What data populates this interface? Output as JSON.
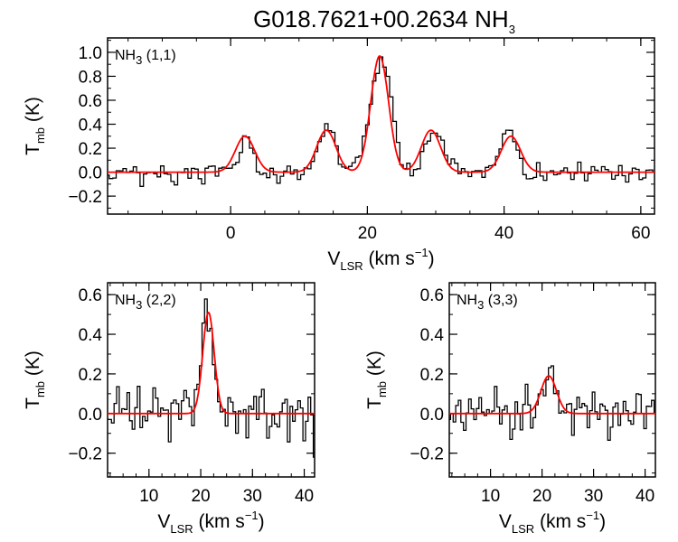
{
  "figure": {
    "title": "G018.7621+00.2634 NH",
    "title_sub": "3"
  },
  "chart_data": [
    {
      "type": "line",
      "panel_label": {
        "main": "NH",
        "sub": "3",
        "tail": " (1,1)"
      },
      "xlabel": {
        "main": "V",
        "sub": "LSR",
        "tail": " (km s",
        "sup": "−1",
        "end": ")"
      },
      "ylabel": {
        "main": "T",
        "sub": "mb",
        "tail": " (K)"
      },
      "xlim": [
        -18,
        62
      ],
      "ylim": [
        -0.35,
        1.12
      ],
      "xticks": [
        0,
        20,
        40,
        60
      ],
      "xtick_labels": [
        "0",
        "20",
        "40",
        "60"
      ],
      "yticks": [
        -0.2,
        0.0,
        0.2,
        0.4,
        0.6,
        0.8,
        1.0
      ],
      "ytick_labels": [
        "−0.2",
        "0.0",
        "0.2",
        "0.4",
        "0.6",
        "0.8",
        "1.0"
      ],
      "grid": false,
      "series": [
        {
          "style": "histogram",
          "color": "#000000",
          "noise_rms": 0.045,
          "x": [
            -18,
            -17,
            -16,
            -15,
            -14,
            -13,
            -12,
            -11,
            -10,
            -9,
            -8,
            -7,
            -6,
            -5,
            -4,
            -3,
            -2,
            -1,
            0,
            1,
            2,
            3,
            4,
            5,
            6,
            7,
            8,
            9,
            10,
            11,
            12,
            13,
            14,
            15,
            16,
            17,
            18,
            19,
            20,
            21,
            22,
            23,
            24,
            25,
            26,
            27,
            28,
            29,
            30,
            31,
            32,
            33,
            34,
            35,
            36,
            37,
            38,
            39,
            40,
            41,
            42,
            43,
            44,
            45,
            46,
            47,
            48,
            49,
            50,
            51,
            52,
            53,
            54,
            55,
            56,
            57,
            58,
            59,
            60,
            61,
            62
          ],
          "y": [
            0.02,
            -0.08,
            0.05,
            -0.03,
            0.04,
            -0.12,
            0.03,
            -0.05,
            0.06,
            -0.02,
            -0.07,
            0.04,
            -0.04,
            0.02,
            -0.06,
            0.05,
            -0.03,
            0.04,
            0.01,
            0.05,
            0.33,
            0.22,
            0.04,
            -0.03,
            0.02,
            -0.05,
            0.05,
            0.02,
            -0.04,
            0.04,
            0.1,
            0.23,
            0.38,
            0.33,
            0.1,
            0.03,
            0.06,
            0.18,
            0.35,
            0.72,
            1.0,
            0.82,
            0.4,
            0.06,
            0.03,
            -0.02,
            0.13,
            0.3,
            0.37,
            0.26,
            0.1,
            0.04,
            0.02,
            -0.05,
            0.05,
            -0.02,
            0.06,
            0.12,
            0.3,
            0.38,
            0.18,
            0.02,
            -0.05,
            0.04,
            -0.03,
            0.05,
            -0.02,
            0.03,
            -0.06,
            0.04,
            -0.03,
            0.05,
            -0.02,
            0.03,
            -0.04,
            0.02,
            -0.05,
            0.04,
            -0.03,
            0.01,
            0.0
          ]
        },
        {
          "style": "fit",
          "color": "#ff0000",
          "components": [
            {
              "center": 2.1,
              "amp": 0.3,
              "width": 1.4
            },
            {
              "center": 14.0,
              "amp": 0.35,
              "width": 1.4
            },
            {
              "center": 21.8,
              "amp": 0.97,
              "width": 1.3
            },
            {
              "center": 29.3,
              "amp": 0.35,
              "width": 1.4
            },
            {
              "center": 41.0,
              "amp": 0.3,
              "width": 1.4
            }
          ]
        }
      ]
    },
    {
      "type": "line",
      "panel_label": {
        "main": "NH",
        "sub": "3",
        "tail": " (2,2)"
      },
      "xlabel": {
        "main": "V",
        "sub": "LSR",
        "tail": " (km s",
        "sup": "−1",
        "end": ")"
      },
      "ylabel": {
        "main": "T",
        "sub": "mb",
        "tail": " (K)"
      },
      "xlim": [
        2,
        42
      ],
      "ylim": [
        -0.32,
        0.66
      ],
      "xticks": [
        10,
        20,
        30,
        40
      ],
      "xtick_labels": [
        "10",
        "20",
        "30",
        "40"
      ],
      "yticks": [
        -0.2,
        0.0,
        0.2,
        0.4,
        0.6
      ],
      "ytick_labels": [
        "−0.2",
        "0.0",
        "0.2",
        "0.4",
        "0.6"
      ],
      "grid": false,
      "series": [
        {
          "style": "histogram",
          "color": "#000000",
          "noise_rms": 0.08,
          "x": [
            2,
            3,
            4,
            5,
            6,
            7,
            8,
            9,
            10,
            11,
            12,
            13,
            14,
            15,
            16,
            17,
            18,
            19,
            20,
            21,
            22,
            23,
            24,
            25,
            26,
            27,
            28,
            29,
            30,
            31,
            32,
            33,
            34,
            35,
            36,
            37,
            38,
            39,
            40,
            41,
            42
          ],
          "y": [
            0.05,
            -0.1,
            0.08,
            -0.05,
            0.1,
            -0.12,
            0.06,
            -0.08,
            0.04,
            0.09,
            -0.06,
            0.07,
            -0.1,
            0.05,
            -0.04,
            0.08,
            -0.02,
            0.05,
            0.22,
            0.55,
            0.42,
            0.1,
            0.02,
            -0.06,
            0.08,
            -0.09,
            0.05,
            -0.07,
            0.1,
            -0.04,
            0.06,
            -0.11,
            0.07,
            -0.05,
            0.09,
            -0.08,
            0.04,
            0.08,
            -0.1,
            0.05,
            -0.22
          ]
        },
        {
          "style": "fit",
          "color": "#ff0000",
          "components": [
            {
              "center": 21.5,
              "amp": 0.51,
              "width": 1.1
            }
          ]
        }
      ]
    },
    {
      "type": "line",
      "panel_label": {
        "main": "NH",
        "sub": "3",
        "tail": " (3,3)"
      },
      "xlabel": {
        "main": "V",
        "sub": "LSR",
        "tail": " (km s",
        "sup": "−1",
        "end": ")"
      },
      "ylabel": {
        "main": "T",
        "sub": "mb",
        "tail": " (K)"
      },
      "xlim": [
        2,
        42
      ],
      "ylim": [
        -0.32,
        0.66
      ],
      "xticks": [
        10,
        20,
        30,
        40
      ],
      "xtick_labels": [
        "10",
        "20",
        "30",
        "40"
      ],
      "yticks": [
        -0.2,
        0.0,
        0.2,
        0.4,
        0.6
      ],
      "ytick_labels": [
        "−0.2",
        "0.0",
        "0.2",
        "0.4",
        "0.6"
      ],
      "grid": false,
      "series": [
        {
          "style": "histogram",
          "color": "#000000",
          "noise_rms": 0.06,
          "x": [
            2,
            3,
            4,
            5,
            6,
            7,
            8,
            9,
            10,
            11,
            12,
            13,
            14,
            15,
            16,
            17,
            18,
            19,
            20,
            21,
            22,
            23,
            24,
            25,
            26,
            27,
            28,
            29,
            30,
            31,
            32,
            33,
            34,
            35,
            36,
            37,
            38,
            39,
            40,
            41,
            42
          ],
          "y": [
            0.03,
            -0.08,
            0.05,
            -0.04,
            0.07,
            -0.09,
            0.04,
            -0.06,
            0.03,
            0.08,
            -0.05,
            0.06,
            -0.08,
            0.04,
            -0.03,
            0.09,
            -0.04,
            0.06,
            0.12,
            0.17,
            0.19,
            0.1,
            -0.02,
            0.08,
            -0.06,
            0.04,
            0.07,
            -0.04,
            0.08,
            -0.05,
            0.05,
            -0.08,
            0.06,
            -0.03,
            0.07,
            -0.06,
            0.03,
            0.06,
            -0.08,
            0.04,
            0.0
          ]
        },
        {
          "style": "fit",
          "color": "#ff0000",
          "components": [
            {
              "center": 21.3,
              "amp": 0.19,
              "width": 1.5
            }
          ]
        }
      ]
    }
  ]
}
